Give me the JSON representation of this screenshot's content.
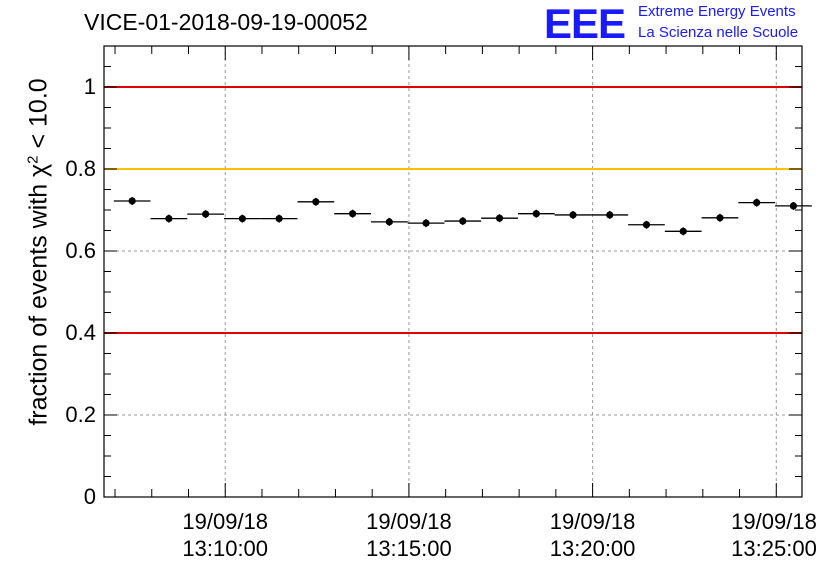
{
  "title": "VICE-01-2018-09-19-00052",
  "logo": {
    "mark": "EEE",
    "line1": "Extreme Energy Events",
    "line2": "La Scienza nelle Scuole"
  },
  "chart_data": {
    "type": "scatter",
    "title": "VICE-01-2018-09-19-00052",
    "ylabel_prefix": "fraction of events with ",
    "ylabel_chi": "χ",
    "ylabel_exp": "2",
    "ylabel_suffix": " < 10.0",
    "xlabel": "",
    "xlim_minutes": [
      -3.3,
      15.7
    ],
    "ylim": [
      0,
      1.1
    ],
    "yticks": [
      0,
      0.2,
      0.4,
      0.6,
      0.8,
      1
    ],
    "ytick_labels": [
      "0",
      "0.2",
      "0.4",
      "0.6",
      "0.8",
      "1"
    ],
    "xticks_minutes": [
      0,
      5,
      10,
      15
    ],
    "xtick_labels": [
      {
        "date": "19/09/18",
        "time": "13:10:00"
      },
      {
        "date": "19/09/18",
        "time": "13:15:00"
      },
      {
        "date": "19/09/18",
        "time": "13:20:00"
      },
      {
        "date": "19/09/18",
        "time": "13:25:00"
      }
    ],
    "x_origin_time": "13:10:00",
    "bin_width_minutes": 1,
    "grid": true,
    "reference_lines": [
      {
        "y": 1.0,
        "color": "#e00000"
      },
      {
        "y": 0.8,
        "color": "#ffc000"
      },
      {
        "y": 0.4,
        "color": "#e00000"
      }
    ],
    "points": [
      {
        "x": "13:07:28",
        "y": 0.722
      },
      {
        "x": "13:08:28",
        "y": 0.679
      },
      {
        "x": "13:09:28",
        "y": 0.69
      },
      {
        "x": "13:10:28",
        "y": 0.679
      },
      {
        "x": "13:11:28",
        "y": 0.679
      },
      {
        "x": "13:12:28",
        "y": 0.72
      },
      {
        "x": "13:13:28",
        "y": 0.691
      },
      {
        "x": "13:14:28",
        "y": 0.671
      },
      {
        "x": "13:15:28",
        "y": 0.668
      },
      {
        "x": "13:16:28",
        "y": 0.673
      },
      {
        "x": "13:17:28",
        "y": 0.68
      },
      {
        "x": "13:18:28",
        "y": 0.691
      },
      {
        "x": "13:19:28",
        "y": 0.688
      },
      {
        "x": "13:20:28",
        "y": 0.688
      },
      {
        "x": "13:21:28",
        "y": 0.664
      },
      {
        "x": "13:22:28",
        "y": 0.648
      },
      {
        "x": "13:23:28",
        "y": 0.681
      },
      {
        "x": "13:24:28",
        "y": 0.718
      },
      {
        "x": "13:25:28",
        "y": 0.71
      }
    ]
  }
}
